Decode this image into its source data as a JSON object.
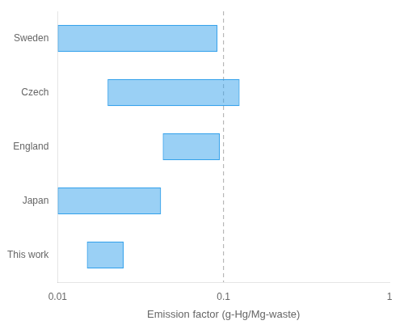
{
  "chart_data": {
    "type": "bar",
    "orientation": "horizontal",
    "log": "x",
    "categories": [
      "This work",
      "Japan",
      "England",
      "Czech",
      "Sweden"
    ],
    "values": [
      [
        0.015,
        0.025
      ],
      [
        0.01,
        0.042
      ],
      [
        0.043,
        0.095
      ],
      [
        0.02,
        0.125
      ],
      [
        0.01,
        0.092
      ]
    ],
    "xlabel": "Emission factor (g-Hg/Mg-waste)",
    "xlim": [
      0.01,
      1.0
    ],
    "xticks": [
      0.01,
      0.1,
      1
    ],
    "vlines": [
      0.1
    ],
    "grid": false
  }
}
